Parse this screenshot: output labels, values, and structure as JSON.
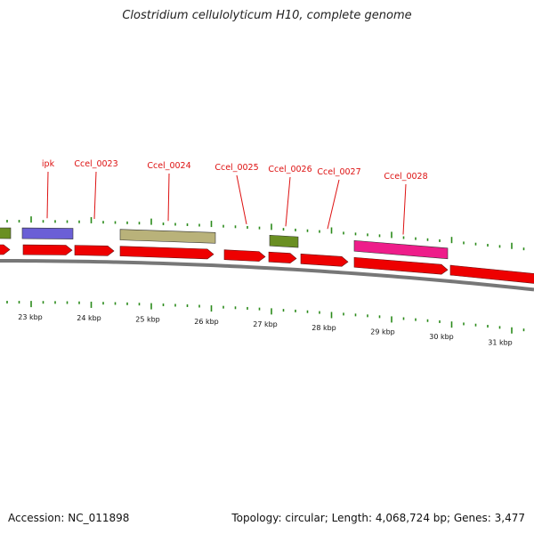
{
  "title": "Clostridium cellulolyticum H10, complete genome",
  "accession": "Accession: NC_011898",
  "summary": "Topology: circular; Length: 4,068,724 bp; Genes: 3,477",
  "colors": {
    "label": "#dd1111",
    "tick": "#2a8a1a",
    "cds": "#ee0000",
    "backbone": "#777777",
    "purple": "#6b5fd6",
    "khaki": "#b9b27a",
    "olive": "#6a8f22",
    "magenta": "#ee1d8a"
  },
  "genes": [
    {
      "name": "ipk"
    },
    {
      "name": "Ccel_0023"
    },
    {
      "name": "Ccel_0024"
    },
    {
      "name": "Ccel_0025"
    },
    {
      "name": "Ccel_0026"
    },
    {
      "name": "Ccel_0027"
    },
    {
      "name": "Ccel_0028"
    }
  ],
  "ruler": [
    "23 kbp",
    "24 kbp",
    "25 kbp",
    "26 kbp",
    "27 kbp",
    "28 kbp",
    "29 kbp",
    "30 kbp",
    "31 kbp"
  ]
}
